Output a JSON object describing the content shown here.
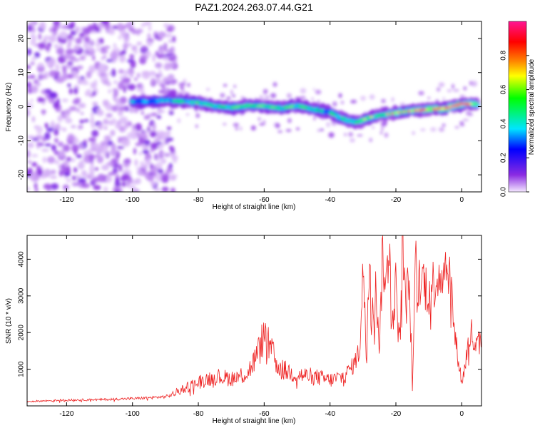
{
  "figure": {
    "title": "PAZ1.2024.263.07.44.G21"
  },
  "chart_data": [
    {
      "type": "heatmap",
      "title": "PAZ1.2024.263.07.44.G21",
      "xlabel": "Height of straight line (km)",
      "ylabel": "Frequency (Hz)",
      "xlim": [
        -132,
        6
      ],
      "ylim": [
        -25,
        25
      ],
      "xticks": [
        -120,
        -100,
        -80,
        -60,
        -40,
        -20,
        0
      ],
      "yticks": [
        -20,
        -10,
        0,
        10,
        20
      ],
      "colorbar": {
        "label": "Normalized spectral amplitude",
        "range": [
          0,
          1
        ],
        "ticks": [
          0.0,
          0.2,
          0.4,
          0.6,
          0.8
        ],
        "colormap": [
          "#f4e8ff",
          "#8a2be2",
          "#0000ff",
          "#00e5ff",
          "#00ff00",
          "#ffff00",
          "#ff8000",
          "#ff0000",
          "#ff1493"
        ]
      },
      "ridge": {
        "x": [
          -100,
          -95,
          -90,
          -85,
          -80,
          -75,
          -70,
          -65,
          -60,
          -55,
          -50,
          -45,
          -40,
          -35,
          -32,
          -28,
          -25,
          -20,
          -15,
          -10,
          -5,
          0,
          5
        ],
        "frequency": [
          1.5,
          1.5,
          1.8,
          1.5,
          1.2,
          0.2,
          -0.3,
          0.3,
          0.2,
          -0.5,
          0.3,
          -0.8,
          -1.8,
          -4,
          -4.6,
          -3.2,
          -2.6,
          -1.8,
          -1.2,
          -0.8,
          -0.5,
          0.8,
          0.8
        ],
        "amplitude": [
          0.35,
          0.3,
          0.4,
          0.45,
          0.5,
          0.45,
          0.5,
          0.5,
          0.55,
          0.5,
          0.5,
          0.45,
          0.45,
          0.5,
          0.55,
          0.55,
          0.55,
          0.65,
          0.7,
          0.85,
          0.95,
          0.9,
          0.6
        ]
      },
      "noise_region_x": [
        -132,
        -87
      ]
    },
    {
      "type": "line",
      "xlabel": "Height of straight line (km)",
      "ylabel": "SNR (10 * v/v)",
      "xlim": [
        -132,
        6
      ],
      "ylim": [
        0,
        4650
      ],
      "xticks": [
        -120,
        -100,
        -80,
        -60,
        -40,
        -20,
        0
      ],
      "yticks": [
        1000,
        2000,
        3000,
        4000
      ],
      "color": "#ee2222",
      "x": [
        -132,
        -120,
        -110,
        -100,
        -95,
        -90,
        -88,
        -85,
        -80,
        -75,
        -70,
        -65,
        -62,
        -60,
        -58,
        -55,
        -50,
        -45,
        -40,
        -36,
        -33,
        -31,
        -30,
        -29,
        -28,
        -27,
        -26,
        -25,
        -24,
        -23,
        -22,
        -21,
        -20,
        -19,
        -18,
        -17,
        -16,
        -15,
        -14,
        -13,
        -12,
        -10,
        -8,
        -6,
        -4,
        -3,
        -2,
        -1,
        0,
        1,
        2,
        3,
        4,
        5,
        6
      ],
      "snr": [
        120,
        160,
        170,
        200,
        220,
        250,
        300,
        450,
        650,
        800,
        750,
        900,
        1400,
        1950,
        1500,
        1000,
        850,
        800,
        700,
        800,
        1100,
        1500,
        3900,
        1400,
        4300,
        2600,
        3200,
        1600,
        4200,
        3100,
        4700,
        2400,
        3300,
        1700,
        4400,
        2700,
        3500,
        600,
        3800,
        3300,
        3500,
        3100,
        3450,
        3700,
        3900,
        3000,
        1800,
        1300,
        600,
        1100,
        1700,
        2000,
        1500,
        1700,
        2050
      ]
    }
  ]
}
